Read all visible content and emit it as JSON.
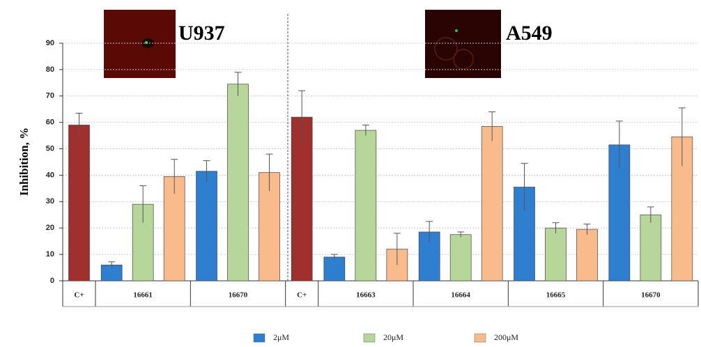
{
  "chart_data": {
    "type": "bar",
    "ylabel": "Inhibition, %",
    "ylim": [
      0,
      90
    ],
    "yticks": [
      0,
      10,
      20,
      30,
      40,
      50,
      60,
      70,
      80,
      90
    ],
    "grid": true,
    "panels": [
      "U937",
      "A549"
    ],
    "categories": [
      "C+",
      "16661",
      "16670",
      "C+",
      "16663",
      "16664",
      "16665",
      "16670"
    ],
    "control": {
      "color": "#a0302e",
      "values": [
        59,
        null,
        null,
        62,
        null,
        null,
        null,
        null
      ],
      "errors": [
        4.5,
        null,
        null,
        10,
        null,
        null,
        null,
        null
      ]
    },
    "series": [
      {
        "name": "2μM",
        "color": "#2f7fd1",
        "values": [
          null,
          6,
          41.5,
          null,
          9,
          18.5,
          35.5,
          51.5
        ],
        "errors": [
          null,
          1.2,
          4,
          null,
          1,
          4,
          9,
          9
        ]
      },
      {
        "name": "20μM",
        "color": "#b6d69a",
        "values": [
          null,
          29,
          74.5,
          null,
          57,
          17.5,
          20,
          25
        ],
        "errors": [
          null,
          7,
          4.5,
          null,
          2,
          1,
          2,
          3
        ]
      },
      {
        "name": "200μM",
        "color": "#f9bb8c",
        "values": [
          null,
          39.5,
          41,
          null,
          12,
          58.5,
          19.5,
          54.5
        ],
        "errors": [
          null,
          6.5,
          7,
          null,
          6,
          5.5,
          2,
          11
        ]
      }
    ],
    "legend": "bottom"
  }
}
